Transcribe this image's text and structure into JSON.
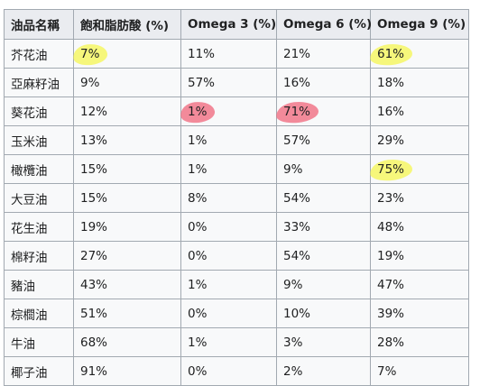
{
  "table": {
    "headers": [
      "油品名稱",
      "飽和脂肪酸 (%)",
      "Omega 3 (%)",
      "Omega 6 (%)",
      "Omega 9 (%)"
    ],
    "rows": [
      [
        "芥花油",
        "7%",
        "11%",
        "21%",
        "61%"
      ],
      [
        "亞麻籽油",
        "9%",
        "57%",
        "16%",
        "18%"
      ],
      [
        "葵花油",
        "12%",
        "1%",
        "71%",
        "16%"
      ],
      [
        "玉米油",
        "13%",
        "1%",
        "57%",
        "29%"
      ],
      [
        "橄欖油",
        "15%",
        "1%",
        "9%",
        "75%"
      ],
      [
        "大豆油",
        "15%",
        "8%",
        "54%",
        "23%"
      ],
      [
        "花生油",
        "19%",
        "0%",
        "33%",
        "48%"
      ],
      [
        "棉籽油",
        "27%",
        "0%",
        "54%",
        "19%"
      ],
      [
        "豬油",
        "43%",
        "1%",
        "9%",
        "47%"
      ],
      [
        "棕櫚油",
        "51%",
        "0%",
        "10%",
        "39%"
      ],
      [
        "牛油",
        "68%",
        "1%",
        "3%",
        "28%"
      ],
      [
        "椰子油",
        "91%",
        "0%",
        "2%",
        "7%"
      ]
    ]
  },
  "highlights": {
    "yellow": "#f6f650",
    "red": "#f06e82",
    "cells": [
      {
        "row": 0,
        "col": 1,
        "color": "yellow"
      },
      {
        "row": 0,
        "col": 4,
        "color": "yellow"
      },
      {
        "row": 2,
        "col": 2,
        "color": "red"
      },
      {
        "row": 2,
        "col": 3,
        "color": "red"
      },
      {
        "row": 4,
        "col": 4,
        "color": "yellow"
      }
    ]
  }
}
